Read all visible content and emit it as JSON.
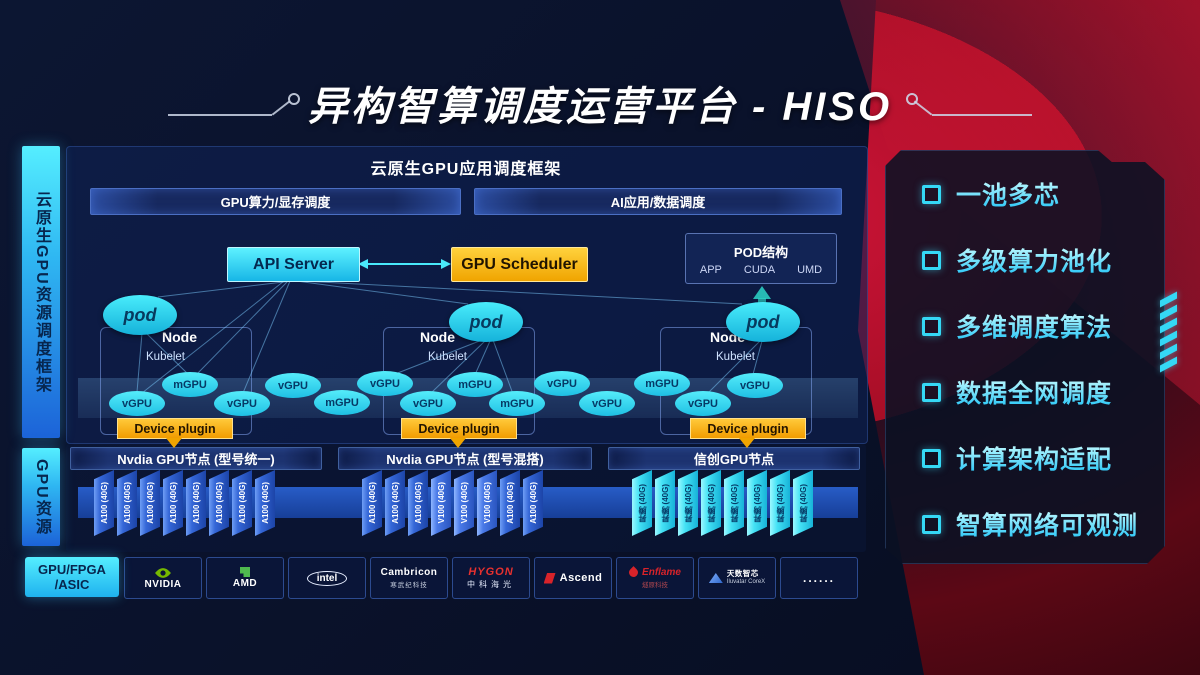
{
  "title": "异构智算调度运营平台 - HISO",
  "sidebar": {
    "framework_label": "云原生GPU资源调度框架",
    "resource_label": "GPU资源"
  },
  "framework": {
    "title": "云原生GPU应用调度框架",
    "lanes": [
      "GPU算力/显存调度",
      "AI应用/数据调度"
    ],
    "api_server": "API Server",
    "gpu_scheduler": "GPU Scheduler",
    "pod_struct": {
      "title": "POD结构",
      "items": [
        "APP",
        "CUDA",
        "UMD"
      ]
    },
    "nodes": [
      {
        "pod": "pod",
        "name": "Node",
        "agent": "Kubelet",
        "device_plugin": "Device plugin"
      },
      {
        "pod": "pod",
        "name": "Node",
        "agent": "Kubelet",
        "device_plugin": "Device plugin"
      },
      {
        "pod": "pod",
        "name": "Node",
        "agent": "Kubelet",
        "device_plugin": "Device plugin"
      }
    ],
    "gpu_units": [
      "vGPU",
      "mGPU",
      "vGPU",
      "vGPU",
      "mGPU",
      "vGPU",
      "vGPU",
      "mGPU",
      "mGPU",
      "vGPU",
      "vGPU",
      "mGPU",
      "vGPU",
      "vGPU"
    ]
  },
  "gpu_pools": [
    {
      "header": "Nvdia GPU节点 (型号统一)",
      "style": "blue",
      "cards": [
        "A100 (40G)",
        "A100 (40G)",
        "A100 (40G)",
        "A100 (40G)",
        "A100 (40G)",
        "A100 (40G)",
        "A100 (40G)",
        "A100 (40G)"
      ]
    },
    {
      "header": "Nvdia GPU节点 (型号混搭)",
      "style": "blue",
      "cards": [
        "A100 (40G)",
        "A100 (40G)",
        "A100 (40G)",
        "V100 (40G)",
        "V100 (40G)",
        "V100 (40G)",
        "A100 (40G)",
        "A100 (40G)"
      ]
    },
    {
      "header": "信创GPU节点",
      "style": "cyan",
      "cards": [
        "昇腾 (40G)",
        "昇腾 (40G)",
        "昇腾 (40G)",
        "昇腾 (40G)",
        "昇腾 (40G)",
        "昇腾 (40G)",
        "昇腾 (40G)",
        "昇腾 (40G)"
      ]
    }
  ],
  "hardware_bar": {
    "label_line1": "GPU/FPGA",
    "label_line2": "/ASIC",
    "vendors": [
      {
        "icon": "nvidia-logo-icon",
        "style": "nvidia",
        "name": "NVIDIA",
        "sub": ""
      },
      {
        "icon": "amd-logo-icon",
        "style": "amd",
        "name": "AMD",
        "sub": ""
      },
      {
        "icon": "intel-logo-icon",
        "style": "intel",
        "name": "intel",
        "sub": ""
      },
      {
        "icon": "cambricon-logo-icon",
        "style": "cambricon",
        "name": "Cambricon",
        "sub": "寒武纪科技"
      },
      {
        "icon": "hygon-logo-icon",
        "style": "hygon",
        "name": "HYGON",
        "sub": "中科海光"
      },
      {
        "icon": "ascend-logo-icon",
        "style": "ascend",
        "name": "Ascend",
        "sub": ""
      },
      {
        "icon": "enflame-flame-icon",
        "style": "enflame",
        "name": "Enflame",
        "sub": "燧原科技"
      },
      {
        "icon": "iluvatar-logo-icon",
        "style": "iluvatar",
        "name": "天数智芯",
        "sub": "Iluvatar CoreX"
      },
      {
        "icon": "ellipsis-icon",
        "style": "dots",
        "name": "......",
        "sub": ""
      }
    ]
  },
  "features": [
    "一池多芯",
    "多级算力池化",
    "多维调度算法",
    "数据全网调度",
    "计算架构适配",
    "智算网络可观测"
  ],
  "colors": {
    "accent_cyan": "#3fe3f5",
    "accent_yellow": "#f0a400",
    "card_blue": "#2f6bd8",
    "brand_red": "#c01330",
    "nvidia_green": "#76b900"
  }
}
